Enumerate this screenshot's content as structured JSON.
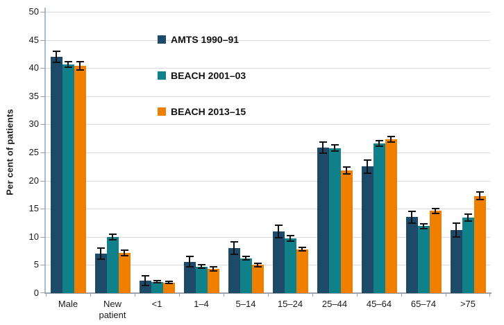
{
  "figure": {
    "background": "#ffffff",
    "text_color": "#1a1a1a",
    "gridline_color": "#d9d9d9",
    "y_axis_line_color": "#a5bbce",
    "x_axis_line_color": "#9aa3ac",
    "error_bar_color": "#111111"
  },
  "chart_data": {
    "type": "bar",
    "title": "",
    "xlabel": "",
    "ylabel": "Per cent of patients",
    "ylim": [
      0,
      50
    ],
    "yticks": [
      0,
      5,
      10,
      15,
      20,
      25,
      30,
      35,
      40,
      45,
      50
    ],
    "grid": "horizontal",
    "legend_position": "upper-left-inside",
    "error_bars": true,
    "categories": [
      "Male",
      "New patient",
      "<1",
      "1–4",
      "5–14",
      "15–24",
      "25–44",
      "45–64",
      "65–74",
      ">75"
    ],
    "series": [
      {
        "name": "AMTS 1990–91",
        "color": "#1d4a68",
        "values": [
          42.0,
          7.0,
          2.2,
          5.6,
          8.0,
          11.0,
          25.9,
          22.5,
          13.5,
          11.2
        ],
        "errors": [
          1.0,
          1.0,
          0.9,
          0.9,
          1.1,
          1.1,
          1.0,
          1.2,
          1.0,
          1.2
        ]
      },
      {
        "name": "BEACH 2001–03",
        "color": "#10818a",
        "values": [
          40.6,
          10.0,
          2.0,
          4.7,
          6.2,
          9.7,
          25.8,
          26.6,
          11.9,
          13.4
        ],
        "errors": [
          0.5,
          0.5,
          0.2,
          0.3,
          0.3,
          0.5,
          0.5,
          0.5,
          0.4,
          0.6
        ]
      },
      {
        "name": "BEACH 2013–15",
        "color": "#ee7f01",
        "values": [
          40.4,
          7.1,
          1.9,
          4.3,
          5.0,
          7.8,
          21.8,
          27.3,
          14.6,
          17.3
        ],
        "errors": [
          0.7,
          0.5,
          0.2,
          0.4,
          0.3,
          0.3,
          0.6,
          0.5,
          0.4,
          0.7
        ]
      }
    ]
  }
}
